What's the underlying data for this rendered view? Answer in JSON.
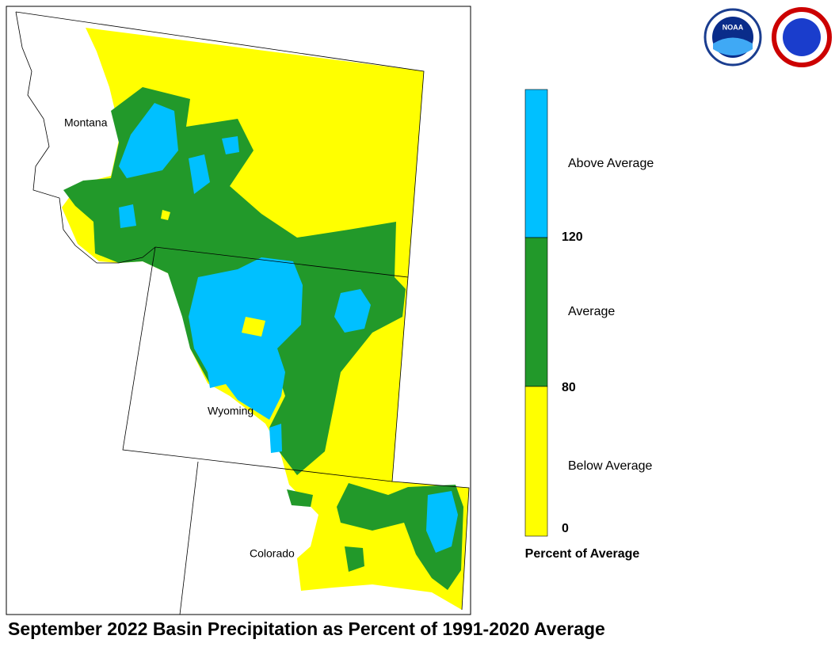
{
  "title": "September 2022 Basin Precipitation as Percent of 1991-2020 Average",
  "logo": "NOAA",
  "states": [
    "Montana",
    "Wyoming",
    "Colorado"
  ],
  "legend": {
    "title": "Percent of Average",
    "classes": [
      {
        "label": "Above Average",
        "color": "#00c0ff"
      },
      {
        "label": "Average",
        "color": "#22992a"
      },
      {
        "label": "Below Average",
        "color": "#ffff00"
      }
    ],
    "ticks": [
      120,
      80,
      0
    ]
  }
}
